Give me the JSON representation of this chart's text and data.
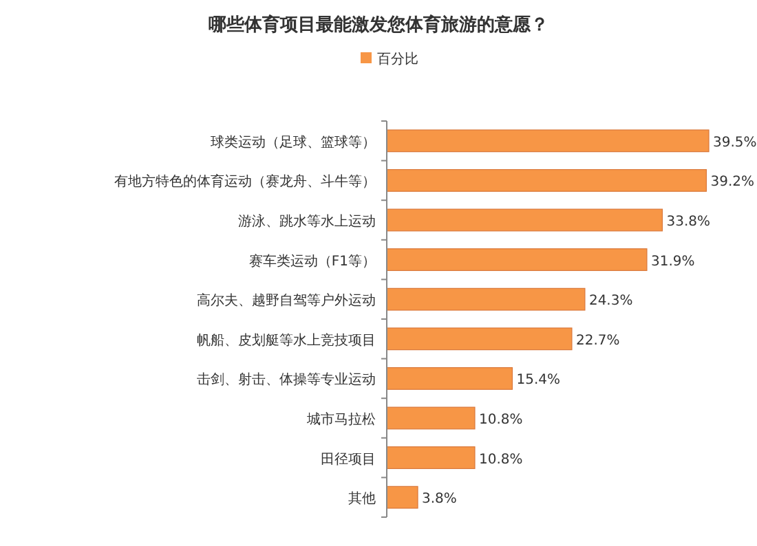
{
  "chart_data": {
    "type": "bar",
    "orientation": "horizontal",
    "title": "哪些体育项目最能激发您体育旅游的意愿？",
    "legend": "top",
    "categories": [
      "球类运动（足球、篮球等）",
      "有地方特色的体育运动（赛龙舟、斗牛等）",
      "游泳、跳水等水上运动",
      "赛车类运动（F1等）",
      "高尔夫、越野自驾等户外运动",
      "帆船、皮划艇等水上竞技项目",
      "击剑、射击、体操等专业运动",
      "城市马拉松",
      "田径项目",
      "其他"
    ],
    "series": [
      {
        "name": "百分比",
        "color": "#f79646",
        "values": [
          39.5,
          39.2,
          33.8,
          31.9,
          24.3,
          22.7,
          15.4,
          10.8,
          10.8,
          3.8
        ],
        "value_labels": [
          "39.5%",
          "39.2%",
          "33.8%",
          "31.9%",
          "24.3%",
          "22.7%",
          "15.4%",
          "10.8%",
          "10.8%",
          "3.8%"
        ]
      }
    ]
  }
}
